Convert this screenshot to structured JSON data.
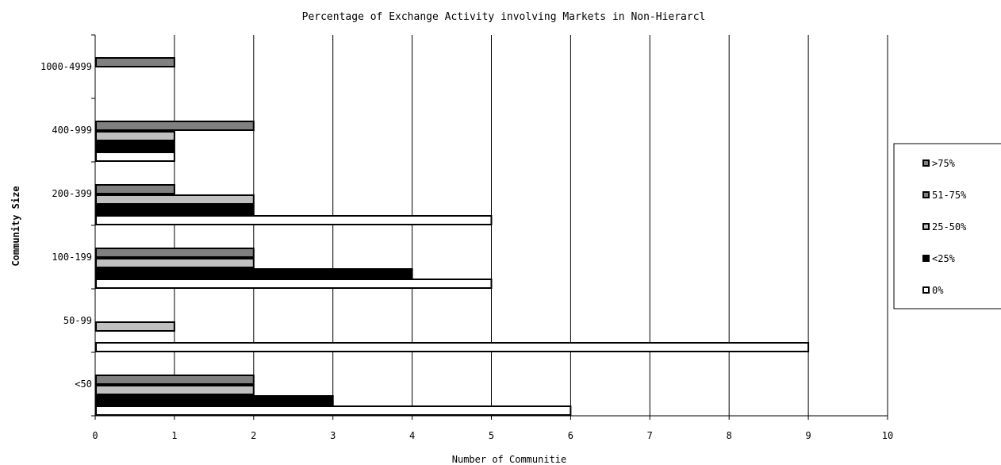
{
  "chart_data": {
    "type": "bar",
    "orientation": "horizontal",
    "title": "Percentage of Exchange Activity involving Markets in Non-Hierarcl",
    "xlabel": "Number of Communitie",
    "ylabel": "Community Size",
    "categories": [
      "<50",
      "50-99",
      "100-199",
      "200-399",
      "400-999",
      "1000-4999"
    ],
    "xlim": [
      0,
      10
    ],
    "xticks": [
      0,
      1,
      2,
      3,
      4,
      5,
      6,
      7,
      8,
      9,
      10
    ],
    "grid": "vertical",
    "legend_position": "right",
    "series": [
      {
        "name": "0%",
        "color": "#ffffff",
        "values": [
          6,
          9,
          5,
          5,
          1,
          0
        ]
      },
      {
        "name": "<25%",
        "color": "#000000",
        "values": [
          3,
          0,
          4,
          2,
          1,
          0
        ]
      },
      {
        "name": "25-50%",
        "color": "#c0c0c0",
        "values": [
          2,
          1,
          2,
          2,
          1,
          0
        ]
      },
      {
        "name": "51-75%",
        "color": "#808080",
        "values": [
          2,
          0,
          2,
          1,
          2,
          1
        ]
      },
      {
        "name": ">75%",
        "color": "#808080",
        "values": [
          0,
          0,
          0,
          0,
          0,
          0
        ]
      }
    ]
  }
}
